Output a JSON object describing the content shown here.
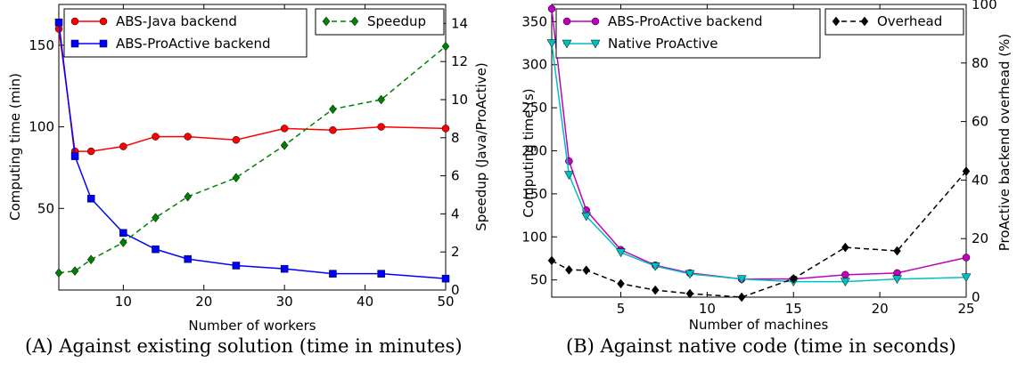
{
  "chart_data": [
    {
      "type": "line",
      "caption": "(A) Against existing solution (time in minutes)",
      "xlabel": "Number of workers",
      "ylabel": "Computing time (min)",
      "y2label": "Speedup (Java/ProActive)",
      "xlim": [
        2,
        50
      ],
      "ylim": [
        0,
        175
      ],
      "y2lim": [
        0,
        15
      ],
      "xticks": [
        "10",
        "20",
        "30",
        "40",
        "50"
      ],
      "yticks": [
        "50",
        "100",
        "150"
      ],
      "y2ticks": [
        "0",
        "2",
        "4",
        "6",
        "8",
        "10",
        "12",
        "14"
      ],
      "grid": false,
      "series": [
        {
          "name": "ABS-Java backend",
          "axis": "left",
          "color": "#ff0000",
          "marker": "circle",
          "dash": "solid",
          "x": [
            2,
            4,
            6,
            10,
            14,
            18,
            24,
            30,
            36,
            42,
            50
          ],
          "y": [
            160,
            85,
            85,
            88,
            94,
            94,
            92,
            99,
            98,
            100,
            99
          ]
        },
        {
          "name": "ABS-ProActive backend",
          "axis": "left",
          "color": "#0000ff",
          "marker": "square",
          "dash": "solid",
          "x": [
            2,
            4,
            6,
            10,
            14,
            18,
            24,
            30,
            36,
            42,
            50
          ],
          "y": [
            164,
            82,
            56,
            35,
            25,
            19,
            15,
            13,
            10,
            10,
            7
          ]
        },
        {
          "name": "Speedup",
          "axis": "right",
          "color": "#008000",
          "marker": "diamond",
          "dash": "dashed",
          "x": [
            2,
            4,
            6,
            10,
            14,
            18,
            24,
            30,
            36,
            42,
            50
          ],
          "y": [
            0.9,
            1.0,
            1.6,
            2.5,
            3.8,
            4.9,
            5.9,
            7.6,
            9.5,
            10.0,
            12.8
          ]
        }
      ],
      "legend": [
        {
          "position": "top-left",
          "entries": [
            "ABS-Java backend",
            "ABS-ProActive backend"
          ]
        },
        {
          "position": "top-right",
          "entries": [
            "Speedup"
          ]
        }
      ]
    },
    {
      "type": "line",
      "caption": "(B) Against native code (time in seconds)",
      "xlabel": "Number of machines",
      "ylabel": "Computing time (s)",
      "y2label": "ProActive backend overhead (%)",
      "xlim": [
        1,
        25
      ],
      "ylim": [
        30,
        370
      ],
      "y2lim": [
        0,
        100
      ],
      "xticks": [
        "5",
        "10",
        "15",
        "20",
        "25"
      ],
      "yticks": [
        "50",
        "100",
        "150",
        "200",
        "250",
        "300",
        "350"
      ],
      "y2ticks": [
        "0",
        "20",
        "40",
        "60",
        "80",
        "100"
      ],
      "grid": false,
      "series": [
        {
          "name": "ABS-ProActive backend",
          "axis": "left",
          "color": "#bf00bf",
          "marker": "circle",
          "dash": "solid",
          "x": [
            1,
            2,
            3,
            5,
            7,
            9,
            12,
            15,
            18,
            21,
            25
          ],
          "y": [
            365,
            188,
            131,
            85,
            67,
            58,
            51,
            51,
            56,
            58,
            76
          ]
        },
        {
          "name": "Native ProActive",
          "axis": "left",
          "color": "#00bfbf",
          "marker": "triangle-down",
          "dash": "solid",
          "x": [
            1,
            2,
            3,
            5,
            7,
            9,
            12,
            15,
            18,
            21,
            25
          ],
          "y": [
            325,
            172,
            124,
            82,
            66,
            57,
            51,
            48,
            48,
            51,
            53
          ]
        },
        {
          "name": "Overhead",
          "axis": "right",
          "color": "#000000",
          "marker": "diamond",
          "dash": "dashed",
          "x": [
            1,
            2,
            3,
            5,
            7,
            9,
            12,
            15,
            18,
            21,
            25
          ],
          "y": [
            12.5,
            9.3,
            9.2,
            4.6,
            2.4,
            1.2,
            0,
            6.3,
            17,
            15.8,
            43
          ]
        }
      ],
      "legend": [
        {
          "position": "top-left",
          "entries": [
            "ABS-ProActive backend",
            "Native ProActive"
          ]
        },
        {
          "position": "top-right",
          "entries": [
            "Overhead"
          ]
        }
      ]
    }
  ]
}
